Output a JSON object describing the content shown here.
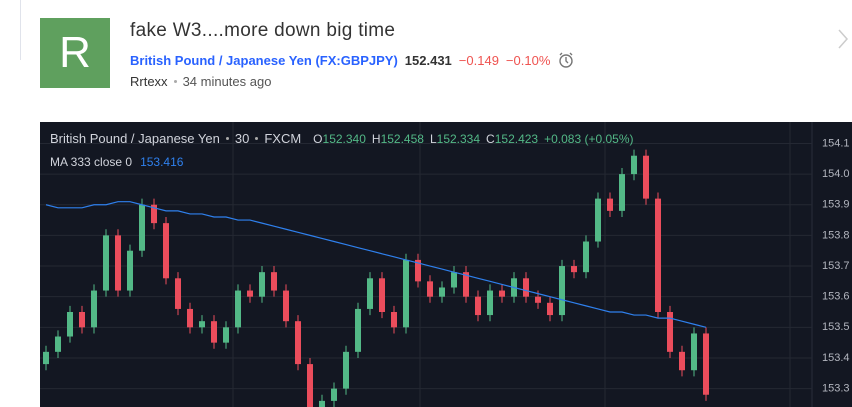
{
  "header": {
    "avatar_letter": "R",
    "title": "fake W3....more down big time",
    "symbol": "British Pound / Japanese Yen",
    "ticker": "(FX:GBPJPY)",
    "price": "152.431",
    "change": "−0.149",
    "change_pct": "−0.10%",
    "author": "Rrtexx",
    "time": "34 minutes ago"
  },
  "legend": {
    "symbol": "British Pound / Japanese Yen",
    "interval": "30",
    "source": "FXCM",
    "ohlc": [
      {
        "key": "O",
        "value": "152.340"
      },
      {
        "key": "H",
        "value": "152.458"
      },
      {
        "key": "L",
        "value": "152.334"
      },
      {
        "key": "C",
        "value": "152.423"
      }
    ],
    "change": "+0.083 (+0.05%)",
    "ma_label": "MA 333 close 0",
    "ma_value": "153.416"
  },
  "chart_data": {
    "type": "candlestick",
    "up_color": "#53b987",
    "down_color": "#eb4d5c",
    "ylim": [
      153.24,
      154.17
    ],
    "yticks": [
      153.3,
      153.4,
      153.5,
      153.6,
      153.7,
      153.8,
      153.9,
      {
        "value": 154,
        "label": "154.0"
      },
      154.1
    ],
    "grid": true,
    "open": [
      153.38,
      153.42,
      153.47,
      153.55,
      153.5,
      153.62,
      153.8,
      153.62,
      153.75,
      153.9,
      153.84,
      153.66,
      153.56,
      153.5,
      153.52,
      153.45,
      153.5,
      153.62,
      153.6,
      153.68,
      153.62,
      153.52,
      153.38,
      153.22,
      153.26,
      153.3,
      153.42,
      153.56,
      153.66,
      153.55,
      153.5,
      153.72,
      153.65,
      153.6,
      153.63,
      153.68,
      153.6,
      153.54,
      153.62,
      153.6,
      153.66,
      153.6,
      153.58,
      153.54,
      153.7,
      153.68,
      153.78,
      153.92,
      153.88,
      154.0,
      154.06,
      153.92,
      153.55,
      153.42,
      153.36,
      153.48
    ],
    "high": [
      153.44,
      153.49,
      153.57,
      153.57,
      153.64,
      153.82,
      153.82,
      153.77,
      153.92,
      153.92,
      153.86,
      153.68,
      153.58,
      153.54,
      153.54,
      153.52,
      153.64,
      153.64,
      153.7,
      153.7,
      153.64,
      153.54,
      153.4,
      153.28,
      153.32,
      153.44,
      153.58,
      153.68,
      153.68,
      153.57,
      153.74,
      153.74,
      153.67,
      153.65,
      153.7,
      153.7,
      153.62,
      153.64,
      153.64,
      153.68,
      153.68,
      153.62,
      153.6,
      153.72,
      153.72,
      153.8,
      153.94,
      153.94,
      154.02,
      154.08,
      154.08,
      153.94,
      153.57,
      153.44,
      153.5,
      153.5
    ],
    "low": [
      153.36,
      153.4,
      153.45,
      153.48,
      153.48,
      153.6,
      153.6,
      153.6,
      153.73,
      153.82,
      153.64,
      153.54,
      153.48,
      153.48,
      153.43,
      153.43,
      153.48,
      153.58,
      153.58,
      153.6,
      153.5,
      153.36,
      153.2,
      153.2,
      153.24,
      153.28,
      153.4,
      153.54,
      153.53,
      153.48,
      153.48,
      153.63,
      153.58,
      153.58,
      153.61,
      153.58,
      153.52,
      153.52,
      153.58,
      153.58,
      153.58,
      153.56,
      153.52,
      153.52,
      153.66,
      153.66,
      153.76,
      153.86,
      153.86,
      153.98,
      153.9,
      153.53,
      153.4,
      153.34,
      153.34,
      153.26
    ],
    "close": [
      153.42,
      153.47,
      153.55,
      153.5,
      153.62,
      153.8,
      153.62,
      153.75,
      153.9,
      153.84,
      153.66,
      153.56,
      153.5,
      153.52,
      153.45,
      153.5,
      153.62,
      153.6,
      153.68,
      153.62,
      153.52,
      153.38,
      153.22,
      153.26,
      153.3,
      153.42,
      153.56,
      153.66,
      153.55,
      153.5,
      153.72,
      153.65,
      153.6,
      153.63,
      153.68,
      153.6,
      153.54,
      153.62,
      153.6,
      153.66,
      153.6,
      153.58,
      153.54,
      153.7,
      153.68,
      153.78,
      153.92,
      153.88,
      154.0,
      154.06,
      153.92,
      153.55,
      153.42,
      153.36,
      153.48,
      153.28
    ],
    "ma": {
      "color": "#2f80ed",
      "values": [
        153.9,
        153.89,
        153.89,
        153.89,
        153.9,
        153.9,
        153.91,
        153.91,
        153.9,
        153.89,
        153.88,
        153.88,
        153.87,
        153.87,
        153.86,
        153.86,
        153.85,
        153.85,
        153.84,
        153.83,
        153.82,
        153.81,
        153.8,
        153.79,
        153.78,
        153.77,
        153.76,
        153.75,
        153.74,
        153.73,
        153.72,
        153.71,
        153.7,
        153.69,
        153.68,
        153.67,
        153.66,
        153.65,
        153.64,
        153.63,
        153.62,
        153.61,
        153.6,
        153.59,
        153.58,
        153.57,
        153.56,
        153.55,
        153.55,
        153.54,
        153.54,
        153.53,
        153.53,
        153.52,
        153.51,
        153.5
      ]
    }
  }
}
